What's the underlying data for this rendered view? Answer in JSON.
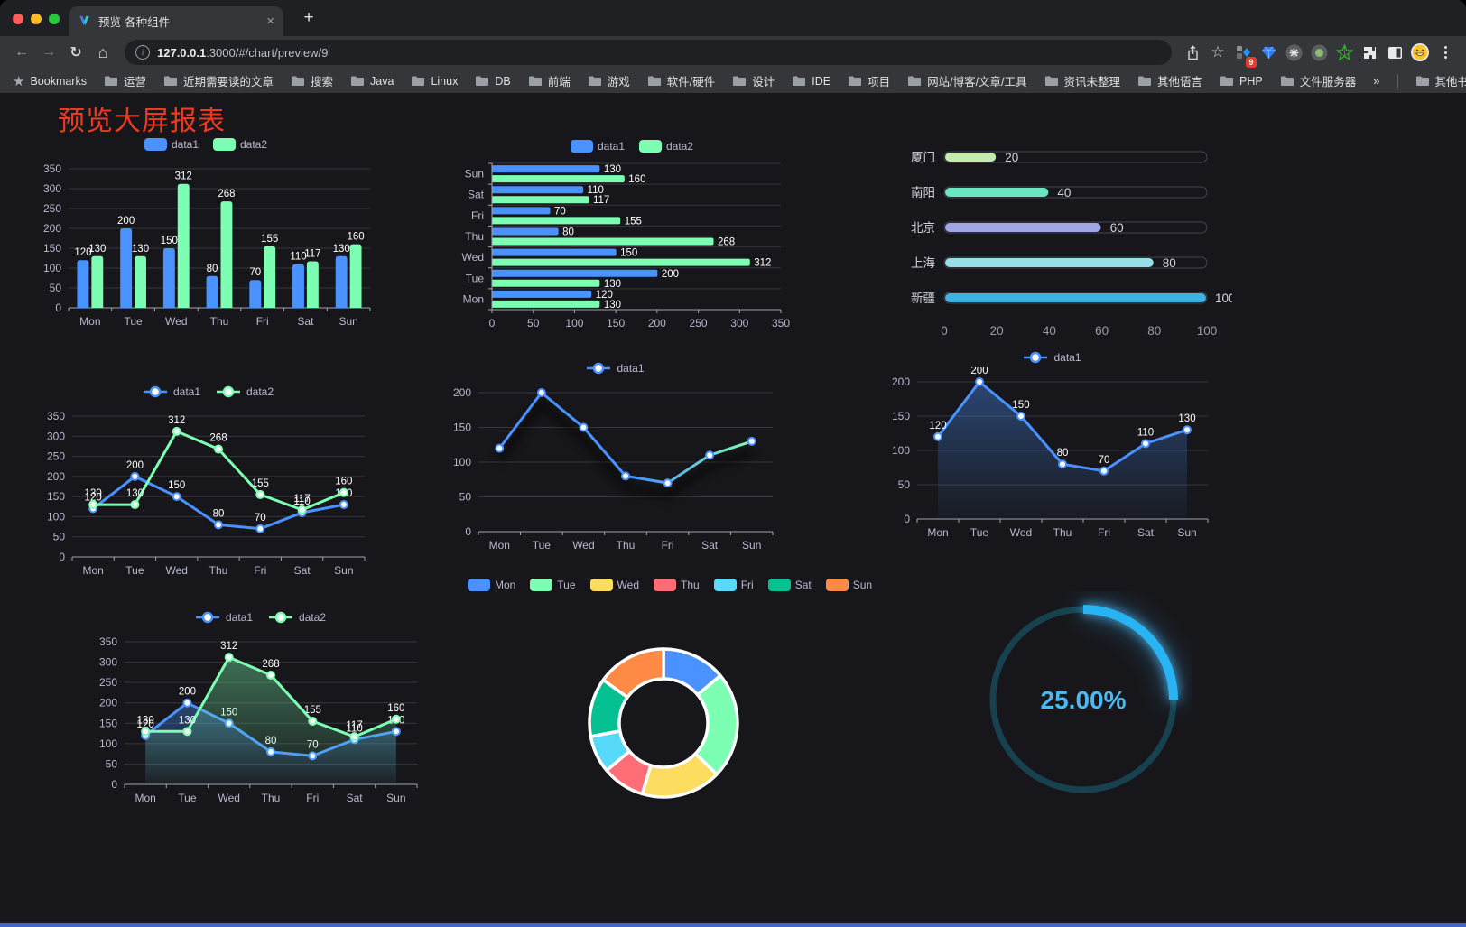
{
  "browser": {
    "tab_title": "预览-各种组件",
    "url_host": "127.0.0.1",
    "url_rest": ":3000/#/chart/preview/9",
    "ext_badge": "9",
    "bookmarks_label": "Bookmarks",
    "bookmarks": [
      "运营",
      "近期需要读的文章",
      "搜索",
      "Java",
      "Linux",
      "DB",
      "前端",
      "游戏",
      "软件/硬件",
      "设计",
      "IDE",
      "项目",
      "网站/博客/文章/工具",
      "资讯未整理",
      "其他语言",
      "PHP",
      "文件服务器"
    ],
    "overflow_chevron": "»",
    "other_bookmarks": "其他书签"
  },
  "icons": {
    "back": "←",
    "forward": "→",
    "reload": "↻",
    "home": "⌂",
    "close": "×",
    "newtab": "+",
    "star_outline": "☆",
    "bookmark_star": "★",
    "info": "i"
  },
  "page": {
    "title": "预览大屏报表",
    "title_color": "#ee3a21",
    "background": "#17171b"
  },
  "palette": {
    "blue": "#4992ff",
    "green": "#7cffb2",
    "axis_text": "#b9b8ce",
    "grid": "#36363f",
    "axis_line": "#a2a2b2"
  },
  "chart_data": [
    {
      "id": "bar-grouped",
      "type": "bar",
      "legend": "swatch",
      "value_labels": true,
      "categories": [
        "Mon",
        "Tue",
        "Wed",
        "Thu",
        "Fri",
        "Sat",
        "Sun"
      ],
      "yticks": [
        0,
        50,
        100,
        150,
        200,
        250,
        300,
        350
      ],
      "series": [
        {
          "name": "data1",
          "color": "#4992ff",
          "values": [
            120,
            200,
            150,
            80,
            70,
            110,
            130
          ]
        },
        {
          "name": "data2",
          "color": "#7cffb2",
          "values": [
            130,
            130,
            312,
            268,
            155,
            117,
            160
          ]
        }
      ]
    },
    {
      "id": "bar-horizontal",
      "type": "hbar",
      "legend": "swatch",
      "value_labels": true,
      "categories": [
        "Mon",
        "Tue",
        "Wed",
        "Thu",
        "Fri",
        "Sat",
        "Sun"
      ],
      "xticks": [
        0,
        50,
        100,
        150,
        200,
        250,
        300,
        350
      ],
      "series": [
        {
          "name": "data1",
          "color": "#4992ff",
          "values": [
            120,
            200,
            150,
            80,
            70,
            110,
            130
          ]
        },
        {
          "name": "data2",
          "color": "#7cffb2",
          "values": [
            130,
            130,
            312,
            268,
            155,
            117,
            160
          ]
        }
      ]
    },
    {
      "id": "progress-bars",
      "type": "progress",
      "xticks": [
        0,
        20,
        40,
        60,
        80,
        100
      ],
      "rows": [
        {
          "label": "厦门",
          "value": 20,
          "color": "#c4ebad"
        },
        {
          "label": "南阳",
          "value": 40,
          "color": "#6be6c1"
        },
        {
          "label": "北京",
          "value": 60,
          "color": "#a0a7e6"
        },
        {
          "label": "上海",
          "value": 80,
          "color": "#96dee8"
        },
        {
          "label": "新疆",
          "value": 100,
          "color": "#3fb1e3"
        }
      ]
    },
    {
      "id": "line-two-series",
      "type": "line",
      "legend": "marker",
      "value_labels": true,
      "categories": [
        "Mon",
        "Tue",
        "Wed",
        "Thu",
        "Fri",
        "Sat",
        "Sun"
      ],
      "yticks": [
        0,
        50,
        100,
        150,
        200,
        250,
        300,
        350
      ],
      "series": [
        {
          "name": "data1",
          "color": "#4992ff",
          "values": [
            120,
            200,
            150,
            80,
            70,
            110,
            130
          ]
        },
        {
          "name": "data2",
          "color": "#7cffb2",
          "values": [
            130,
            130,
            312,
            268,
            155,
            117,
            160
          ]
        }
      ]
    },
    {
      "id": "line-gradient",
      "type": "line",
      "legend": "marker",
      "value_labels": false,
      "categories": [
        "Mon",
        "Tue",
        "Wed",
        "Thu",
        "Fri",
        "Sat",
        "Sun"
      ],
      "yticks": [
        0,
        50,
        100,
        150,
        200
      ],
      "series": [
        {
          "name": "data1",
          "color_gradient": [
            "#4992ff",
            "#7cffb2"
          ],
          "shadow": true,
          "values": [
            120,
            200,
            150,
            80,
            70,
            110,
            130
          ]
        }
      ]
    },
    {
      "id": "area-single",
      "type": "line",
      "legend": "marker",
      "value_labels": true,
      "categories": [
        "Mon",
        "Tue",
        "Wed",
        "Thu",
        "Fri",
        "Sat",
        "Sun"
      ],
      "yticks": [
        0,
        50,
        100,
        150,
        200
      ],
      "series": [
        {
          "name": "data1",
          "color": "#4992ff",
          "area": true,
          "values": [
            120,
            200,
            150,
            80,
            70,
            110,
            130
          ]
        }
      ]
    },
    {
      "id": "area-two-series",
      "type": "line",
      "legend": "marker",
      "value_labels": true,
      "categories": [
        "Mon",
        "Tue",
        "Wed",
        "Thu",
        "Fri",
        "Sat",
        "Sun"
      ],
      "yticks": [
        0,
        50,
        100,
        150,
        200,
        250,
        300,
        350
      ],
      "series": [
        {
          "name": "data1",
          "color": "#4992ff",
          "area": true,
          "values": [
            120,
            200,
            150,
            80,
            70,
            110,
            130
          ]
        },
        {
          "name": "data2",
          "color": "#7cffb2",
          "area": true,
          "values": [
            130,
            130,
            312,
            268,
            155,
            117,
            160
          ]
        }
      ]
    },
    {
      "id": "donut",
      "type": "donut",
      "legend": "swatch",
      "items": [
        {
          "name": "Mon",
          "value": 120,
          "color": "#4992ff"
        },
        {
          "name": "Tue",
          "value": 200,
          "color": "#7cffb2"
        },
        {
          "name": "Wed",
          "value": 150,
          "color": "#fddd60"
        },
        {
          "name": "Thu",
          "value": 80,
          "color": "#ff6e76"
        },
        {
          "name": "Fri",
          "value": 70,
          "color": "#58d9f9"
        },
        {
          "name": "Sat",
          "value": 110,
          "color": "#05c091"
        },
        {
          "name": "Sun",
          "value": 130,
          "color": "#ff8a45"
        }
      ]
    },
    {
      "id": "gauge",
      "type": "gauge",
      "percent": 25,
      "value_label": "25.00%",
      "arc_color": "#28b4f2",
      "track_color": "#17414e",
      "text_color": "#4db9f3"
    }
  ]
}
